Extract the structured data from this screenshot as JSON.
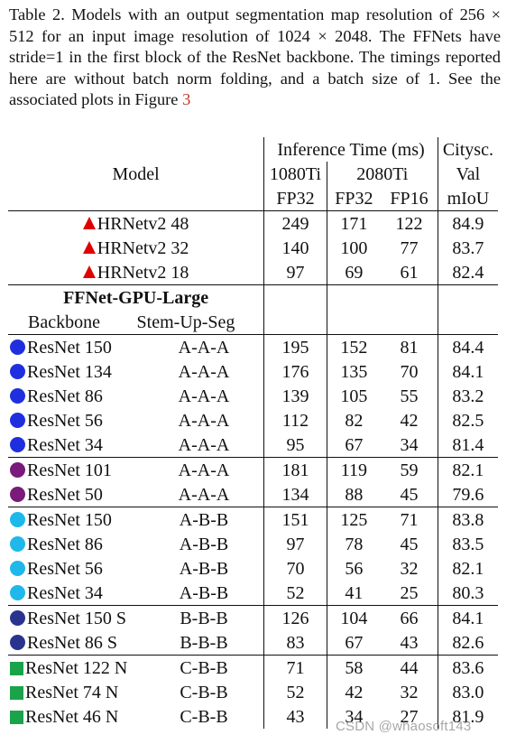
{
  "caption": {
    "text": "Table 2. Models with an output segmentation map resolution of 256 × 512 for an input image resolution of 1024 × 2048. The FFNets have stride=1 in the first block of the ResNet backbone. The timings reported here are without batch norm folding, and a batch size of 1. See the associated plots in Figure ",
    "figure_ref": "3"
  },
  "header": {
    "model": "Model",
    "inference": "Inference Time (ms)",
    "citysc": "Citysc.",
    "gpu_1080": "1080Ti",
    "gpu_2080": "2080Ti",
    "val": "Val",
    "fp32_a": "FP32",
    "fp32_b": "FP32",
    "fp16": "FP16",
    "miou": "mIoU"
  },
  "hrnet_rows": [
    {
      "model": "HRNetv2 48",
      "t1080": "249",
      "t2080_32": "171",
      "t2080_16": "122",
      "miou": "84.9"
    },
    {
      "model": "HRNetv2 32",
      "t1080": "140",
      "t2080_32": "100",
      "t2080_16": "77",
      "miou": "83.7"
    },
    {
      "model": "HRNetv2 18",
      "t1080": "97",
      "t2080_32": "69",
      "t2080_16": "61",
      "miou": "82.4"
    }
  ],
  "ffnet_header": {
    "title": "FFNet-GPU-Large",
    "backbone": "Backbone",
    "stem": "Stem-Up-Seg"
  },
  "groups": [
    {
      "marker": "dot",
      "color": "#1f2fe0",
      "rows": [
        {
          "model": "ResNet 150",
          "seg": "A-A-A",
          "t1080": "195",
          "t2080_32": "152",
          "t2080_16": "81",
          "miou": "84.4"
        },
        {
          "model": "ResNet 134",
          "seg": "A-A-A",
          "t1080": "176",
          "t2080_32": "135",
          "t2080_16": "70",
          "miou": "84.1"
        },
        {
          "model": "ResNet 86",
          "seg": "A-A-A",
          "t1080": "139",
          "t2080_32": "105",
          "t2080_16": "55",
          "miou": "83.2"
        },
        {
          "model": "ResNet 56",
          "seg": "A-A-A",
          "t1080": "112",
          "t2080_32": "82",
          "t2080_16": "42",
          "miou": "82.5"
        },
        {
          "model": "ResNet 34",
          "seg": "A-A-A",
          "t1080": "95",
          "t2080_32": "67",
          "t2080_16": "34",
          "miou": "81.4"
        }
      ]
    },
    {
      "marker": "dot",
      "color": "#7a1a7a",
      "rows": [
        {
          "model": "ResNet 101",
          "seg": "A-A-A",
          "t1080": "181",
          "t2080_32": "119",
          "t2080_16": "59",
          "miou": "82.1"
        },
        {
          "model": "ResNet 50",
          "seg": "A-A-A",
          "t1080": "134",
          "t2080_32": "88",
          "t2080_16": "45",
          "miou": "79.6"
        }
      ]
    },
    {
      "marker": "dot",
      "color": "#1fb8ea",
      "rows": [
        {
          "model": "ResNet 150",
          "seg": "A-B-B",
          "t1080": "151",
          "t2080_32": "125",
          "t2080_16": "71",
          "miou": "83.8"
        },
        {
          "model": "ResNet 86",
          "seg": "A-B-B",
          "t1080": "97",
          "t2080_32": "78",
          "t2080_16": "45",
          "miou": "83.5"
        },
        {
          "model": "ResNet 56",
          "seg": "A-B-B",
          "t1080": "70",
          "t2080_32": "56",
          "t2080_16": "32",
          "miou": "82.1"
        },
        {
          "model": "ResNet 34",
          "seg": "A-B-B",
          "t1080": "52",
          "t2080_32": "41",
          "t2080_16": "25",
          "miou": "80.3"
        }
      ]
    },
    {
      "marker": "dot",
      "color": "#2a3490",
      "rows": [
        {
          "model": "ResNet 150 S",
          "seg": "B-B-B",
          "t1080": "126",
          "t2080_32": "104",
          "t2080_16": "66",
          "miou": "84.1"
        },
        {
          "model": "ResNet 86 S",
          "seg": "B-B-B",
          "t1080": "83",
          "t2080_32": "67",
          "t2080_16": "43",
          "miou": "82.6"
        }
      ]
    },
    {
      "marker": "square",
      "color": "#1aa34a",
      "rows": [
        {
          "model": "ResNet 122 N",
          "seg": "C-B-B",
          "t1080": "71",
          "t2080_32": "58",
          "t2080_16": "44",
          "miou": "83.6"
        },
        {
          "model": "ResNet 74 N",
          "seg": "C-B-B",
          "t1080": "52",
          "t2080_32": "42",
          "t2080_16": "32",
          "miou": "83.0"
        },
        {
          "model": "ResNet 46 N",
          "seg": "C-B-B",
          "t1080": "43",
          "t2080_32": "34",
          "t2080_16": "27",
          "miou": "81.9"
        }
      ]
    }
  ],
  "watermark": "CSDN @whaosoft143"
}
